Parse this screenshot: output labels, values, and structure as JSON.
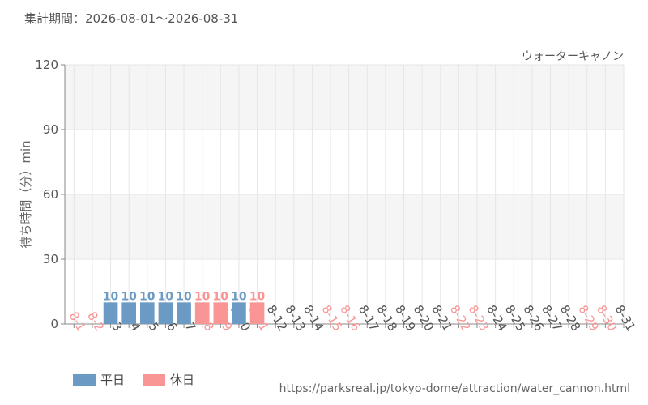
{
  "header": {
    "period_label": "集計期間：2026-08-01〜2026-08-31"
  },
  "colors": {
    "weekday": "#6b9ac4",
    "holiday": "#f99595",
    "axis_text": "#555555"
  },
  "chart_data": {
    "type": "bar",
    "series_name": "ウォーターキャノン",
    "ylabel": "待ち時間（分）min",
    "ylim": [
      0,
      120
    ],
    "yticks": [
      0,
      30,
      60,
      90,
      120
    ],
    "categories": [
      "8-1",
      "8-2",
      "8-3",
      "8-4",
      "8-5",
      "8-6",
      "8-7",
      "8-8",
      "8-9",
      "8-10",
      "8-11",
      "8-12",
      "8-13",
      "8-14",
      "8-15",
      "8-16",
      "8-17",
      "8-18",
      "8-19",
      "8-20",
      "8-21",
      "8-22",
      "8-23",
      "8-24",
      "8-25",
      "8-26",
      "8-27",
      "8-28",
      "8-29",
      "8-30",
      "8-31"
    ],
    "day_types": [
      "holiday",
      "holiday",
      "weekday",
      "weekday",
      "weekday",
      "weekday",
      "weekday",
      "holiday",
      "holiday",
      "weekday",
      "holiday",
      "weekday",
      "weekday",
      "weekday",
      "holiday",
      "holiday",
      "weekday",
      "weekday",
      "weekday",
      "weekday",
      "weekday",
      "holiday",
      "holiday",
      "weekday",
      "weekday",
      "weekday",
      "weekday",
      "weekday",
      "holiday",
      "holiday",
      "weekday"
    ],
    "values": [
      null,
      null,
      10,
      10,
      10,
      10,
      10,
      10,
      10,
      10,
      10,
      null,
      null,
      null,
      null,
      null,
      null,
      null,
      null,
      null,
      null,
      null,
      null,
      null,
      null,
      null,
      null,
      null,
      null,
      null,
      null
    ],
    "legend": [
      {
        "label": "平日",
        "type": "weekday"
      },
      {
        "label": "休日",
        "type": "holiday"
      }
    ]
  },
  "footer": {
    "source_url": "https://parksreal.jp/tokyo-dome/attraction/water_cannon.html"
  }
}
